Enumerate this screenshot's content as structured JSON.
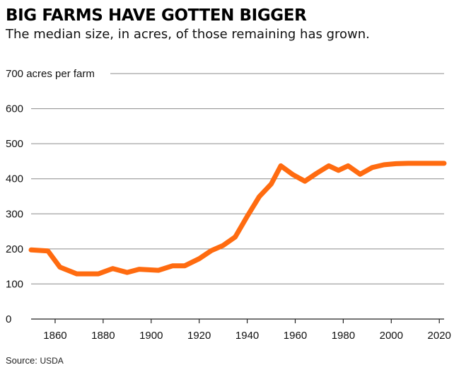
{
  "chart_data": {
    "type": "line",
    "title": "BIG FARMS HAVE GOTTEN BIGGER",
    "subtitle": "The median size, in acres, of those remaining has grown.",
    "top_tick_label": "700 acres per farm",
    "ylim": [
      0,
      700
    ],
    "yticks": [
      0,
      100,
      200,
      300,
      400,
      500,
      600,
      700
    ],
    "xlim": [
      1850,
      2022
    ],
    "xticks": [
      1860,
      1880,
      1900,
      1920,
      1940,
      1960,
      1980,
      2000,
      2020
    ],
    "grid": true,
    "series": [
      {
        "color": "#ff6b10",
        "x": [
          1850,
          1857,
          1862,
          1869,
          1878,
          1884,
          1890,
          1895,
          1903,
          1909,
          1914,
          1920,
          1925,
          1930,
          1935,
          1940,
          1945,
          1950,
          1954,
          1959,
          1964,
          1969,
          1974,
          1978,
          1982,
          1987,
          1992,
          1997,
          2002,
          2007,
          2012,
          2017,
          2022
        ],
        "y": [
          197,
          194,
          148,
          129,
          129,
          144,
          133,
          142,
          139,
          152,
          152,
          172,
          195,
          210,
          234,
          293,
          349,
          385,
          437,
          412,
          393,
          416,
          437,
          424,
          437,
          413,
          432,
          440,
          443,
          444,
          444,
          444,
          444
        ]
      }
    ],
    "source_label": "Source:",
    "source_org": "USDA"
  }
}
